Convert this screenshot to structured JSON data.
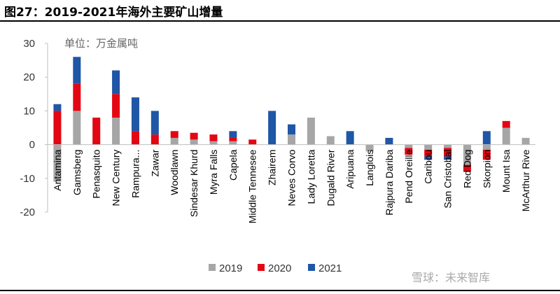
{
  "page": {
    "title": "图27：2019-2021年海外主要矿山增量",
    "watermark": "雪球：未来智库"
  },
  "chart_data": {
    "type": "bar",
    "stacked": true,
    "unit_label": "单位：万金属吨",
    "categories": [
      "Antamina",
      "Gamsberg",
      "Penasquito",
      "New Century",
      "Rampura...",
      "Zawar",
      "Woodlawn",
      "Sindesar Khurd",
      "Myra Falls",
      "Capela",
      "Middle Tennesee",
      "Zhairem",
      "Neves Corvo",
      "Lady Loretta",
      "Dugald River",
      "Aripuana",
      "Langlois",
      "Rajpura Dariba",
      "Pend Oreille",
      "Caribou",
      "San Cristobal",
      "Red Dog",
      "Skorpion",
      "Mount Isa",
      "McArthur Rive"
    ],
    "series": [
      {
        "name": "2019",
        "color": "#a6a6a6",
        "values": [
          -11,
          10,
          0,
          8,
          0,
          0,
          2,
          1.5,
          1,
          1,
          0,
          0,
          3,
          8,
          2.5,
          0,
          -2,
          0,
          -1,
          -1.5,
          -1,
          -6,
          -1.5,
          5,
          2
        ]
      },
      {
        "name": "2020",
        "color": "#e30613",
        "values": [
          10,
          8,
          8,
          7,
          4,
          3,
          2,
          2,
          2,
          1,
          1.5,
          0,
          0,
          0,
          0,
          0,
          0,
          0,
          -2,
          -2,
          -2.5,
          -2,
          -3,
          2,
          0
        ]
      },
      {
        "name": "2021",
        "color": "#1f56a6",
        "values": [
          2,
          8,
          0,
          7,
          10,
          7,
          0,
          0,
          0,
          2,
          0,
          10,
          3,
          0,
          0,
          4,
          0,
          2,
          0,
          -1,
          -1,
          0,
          4,
          0,
          0
        ]
      }
    ],
    "ylim": [
      -20,
      30
    ],
    "yticks": [
      -20,
      -10,
      0,
      10,
      20,
      30
    ],
    "legend": [
      "2019",
      "2020",
      "2021"
    ],
    "legend_position": "bottom-center"
  }
}
